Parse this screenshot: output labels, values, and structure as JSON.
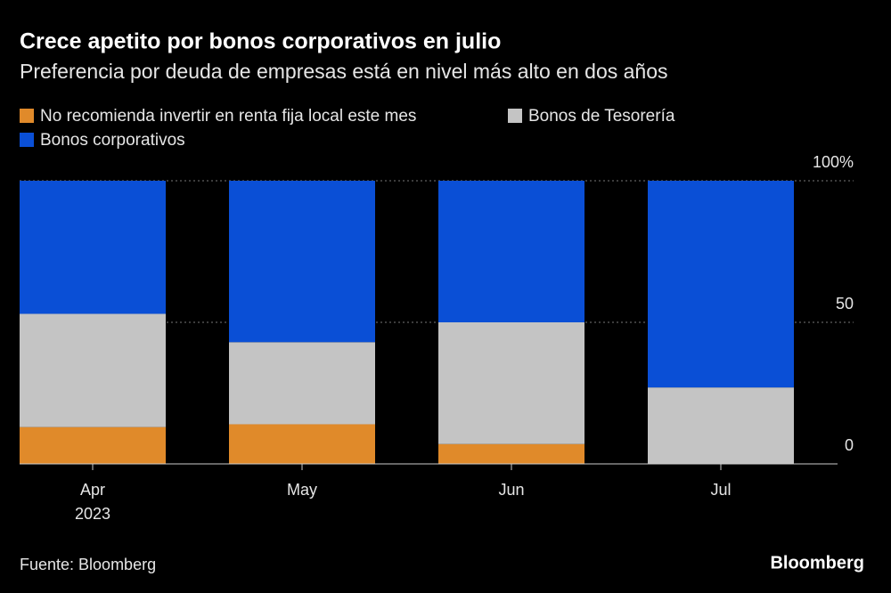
{
  "chart_data": {
    "type": "stacked_bar",
    "title": "Crece apetito por bonos corporativos en julio",
    "subtitle": "Preferencia por deuda de empresas está en nivel más alto en dos años",
    "categories": [
      "Apr",
      "May",
      "Jun",
      "Jul"
    ],
    "year": "2023",
    "series": [
      {
        "name": "No recomienda invertir en renta fija local este mes",
        "color": "#e08a2a",
        "values": [
          13,
          14,
          7,
          0
        ]
      },
      {
        "name": "Bonos de Tesorería",
        "color": "#c4c4c4",
        "values": [
          40,
          29,
          43,
          27
        ]
      },
      {
        "name": "Bonos corporativos",
        "color": "#0a4fd6",
        "values": [
          47,
          57,
          50,
          73
        ]
      }
    ],
    "ylim": [
      0,
      100
    ],
    "yticks": [
      0,
      50,
      {
        "value": 100,
        "label": "100%"
      }
    ],
    "grid": true,
    "source": "Fuente: Bloomberg",
    "logo": "Bloomberg"
  }
}
